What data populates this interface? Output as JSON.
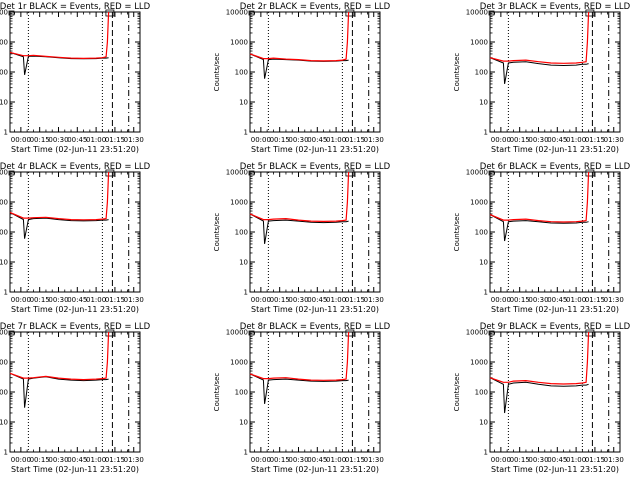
{
  "figure": {
    "background": "#ffffff",
    "event_color": "#000000",
    "lld_color": "#ff0000"
  },
  "chart_data": [
    {
      "type": "line",
      "title": "Det 1r BLACK = Events, RED = LLD",
      "xlabel": "Start Time (02-Jun-11 23:51:20)",
      "ylabel": "Counts/sec",
      "yscale": "log",
      "ylim": [
        1,
        10000
      ],
      "xlim": [
        "23:51:20",
        "01:35:00"
      ],
      "xticks": [
        "00:00",
        "00:15",
        "00:30",
        "00:45",
        "01:00",
        "01:15",
        "01:30"
      ],
      "yticks": [
        1,
        10,
        100,
        1000,
        10000
      ],
      "series": [
        {
          "color": "#000000",
          "x": [
            "23:51:20",
            "00:02",
            "00:03",
            "00:06",
            "00:10",
            "00:20",
            "00:30",
            "00:40",
            "00:50",
            "01:00",
            "01:05",
            "01:08",
            "01:10"
          ],
          "values": [
            450,
            320,
            80,
            330,
            340,
            320,
            300,
            280,
            275,
            280,
            290,
            290,
            300
          ]
        },
        {
          "color": "#ff0000",
          "x": [
            "23:51:20",
            "00:02",
            "00:06",
            "00:10",
            "00:20",
            "00:30",
            "00:40",
            "00:50",
            "01:00",
            "01:05",
            "01:08",
            "01:09",
            "01:10"
          ],
          "values": [
            450,
            350,
            350,
            360,
            330,
            310,
            290,
            285,
            290,
            300,
            320,
            1000,
            10000
          ]
        }
      ]
    },
    {
      "type": "line",
      "title": "Det 2r BLACK = Events, RED = LLD",
      "xlabel": "Start Time (02-Jun-11 23:51:20)",
      "ylabel": "Counts/sec",
      "yscale": "log",
      "ylim": [
        1,
        10000
      ],
      "xlim": [
        "23:51:20",
        "01:35:00"
      ],
      "xticks": [
        "00:00",
        "00:15",
        "00:30",
        "00:45",
        "01:00",
        "01:15",
        "01:30"
      ],
      "yticks": [
        1,
        10,
        100,
        1000,
        10000
      ],
      "series": [
        {
          "color": "#000000",
          "x": [
            "23:51:20",
            "00:02",
            "00:03",
            "00:06",
            "00:10",
            "00:20",
            "00:30",
            "00:40",
            "00:50",
            "01:00",
            "01:05",
            "01:08",
            "01:10"
          ],
          "values": [
            400,
            260,
            60,
            260,
            270,
            260,
            250,
            230,
            225,
            230,
            240,
            240,
            250
          ]
        },
        {
          "color": "#ff0000",
          "x": [
            "23:51:20",
            "00:02",
            "00:06",
            "00:10",
            "00:20",
            "00:30",
            "00:40",
            "00:50",
            "01:00",
            "01:05",
            "01:08",
            "01:09",
            "01:10"
          ],
          "values": [
            400,
            280,
            280,
            290,
            270,
            260,
            240,
            235,
            240,
            250,
            270,
            1000,
            10000
          ]
        }
      ]
    },
    {
      "type": "line",
      "title": "Det 3r BLACK = Events, RED = LLD",
      "xlabel": "Start Time (02-Jun-11 23:51:20)",
      "ylabel": "Counts/sec",
      "yscale": "log",
      "ylim": [
        1,
        10000
      ],
      "xlim": [
        "23:51:20",
        "01:35:00"
      ],
      "xticks": [
        "00:00",
        "00:15",
        "00:30",
        "00:45",
        "01:00",
        "01:15",
        "01:30"
      ],
      "yticks": [
        1,
        10,
        100,
        1000,
        10000
      ],
      "series": [
        {
          "color": "#000000",
          "x": [
            "23:51:20",
            "00:02",
            "00:03",
            "00:06",
            "00:10",
            "00:20",
            "00:30",
            "00:40",
            "00:50",
            "01:00",
            "01:05",
            "01:08",
            "01:10"
          ],
          "values": [
            300,
            200,
            40,
            200,
            210,
            220,
            190,
            170,
            165,
            170,
            180,
            180,
            190
          ]
        },
        {
          "color": "#ff0000",
          "x": [
            "23:51:20",
            "00:02",
            "00:06",
            "00:10",
            "00:20",
            "00:30",
            "00:40",
            "00:50",
            "01:00",
            "01:05",
            "01:08",
            "01:09",
            "01:10"
          ],
          "values": [
            300,
            230,
            230,
            240,
            250,
            220,
            200,
            195,
            200,
            210,
            220,
            1000,
            10000
          ]
        }
      ]
    },
    {
      "type": "line",
      "title": "Det 4r BLACK = Events, RED = LLD",
      "xlabel": "Start Time (02-Jun-11 23:51:20)",
      "ylabel": "Counts/sec",
      "yscale": "log",
      "ylim": [
        1,
        10000
      ],
      "xlim": [
        "23:51:20",
        "01:35:00"
      ],
      "xticks": [
        "00:00",
        "00:15",
        "00:30",
        "00:45",
        "01:00",
        "01:15",
        "01:30"
      ],
      "yticks": [
        1,
        10,
        100,
        1000,
        10000
      ],
      "series": [
        {
          "color": "#000000",
          "x": [
            "23:51:20",
            "00:02",
            "00:03",
            "00:06",
            "00:10",
            "00:20",
            "00:30",
            "00:40",
            "00:50",
            "01:00",
            "01:05",
            "01:08",
            "01:10"
          ],
          "values": [
            450,
            260,
            60,
            260,
            280,
            290,
            260,
            240,
            235,
            240,
            250,
            250,
            260
          ]
        },
        {
          "color": "#ff0000",
          "x": [
            "23:51:20",
            "00:02",
            "00:06",
            "00:10",
            "00:20",
            "00:30",
            "00:40",
            "00:50",
            "01:00",
            "01:05",
            "01:08",
            "01:09",
            "01:10"
          ],
          "values": [
            450,
            290,
            290,
            300,
            310,
            280,
            260,
            255,
            260,
            270,
            280,
            1000,
            10000
          ]
        }
      ]
    },
    {
      "type": "line",
      "title": "Det 5r BLACK = Events, RED = LLD",
      "xlabel": "Start Time (02-Jun-11 23:51:20)",
      "ylabel": "Counts/sec",
      "yscale": "log",
      "ylim": [
        1,
        10000
      ],
      "xlim": [
        "23:51:20",
        "01:35:00"
      ],
      "xticks": [
        "00:00",
        "00:15",
        "00:30",
        "00:45",
        "01:00",
        "01:15",
        "01:30"
      ],
      "yticks": [
        1,
        10,
        100,
        1000,
        10000
      ],
      "series": [
        {
          "color": "#000000",
          "x": [
            "23:51:20",
            "00:02",
            "00:03",
            "00:06",
            "00:10",
            "00:20",
            "00:30",
            "00:40",
            "00:50",
            "01:00",
            "01:05",
            "01:08",
            "01:10"
          ],
          "values": [
            400,
            230,
            40,
            230,
            240,
            250,
            230,
            210,
            205,
            210,
            220,
            220,
            230
          ]
        },
        {
          "color": "#ff0000",
          "x": [
            "23:51:20",
            "00:02",
            "00:06",
            "00:10",
            "00:20",
            "00:30",
            "00:40",
            "00:50",
            "01:00",
            "01:05",
            "01:08",
            "01:09",
            "01:10"
          ],
          "values": [
            400,
            260,
            260,
            270,
            280,
            250,
            230,
            225,
            230,
            240,
            250,
            1000,
            10000
          ]
        }
      ]
    },
    {
      "type": "line",
      "title": "Det 6r BLACK = Events, RED = LLD",
      "xlabel": "Start Time (02-Jun-11 23:51:20)",
      "ylabel": "Counts/sec",
      "yscale": "log",
      "ylim": [
        1,
        10000
      ],
      "xlim": [
        "23:51:20",
        "01:35:00"
      ],
      "xticks": [
        "00:00",
        "00:15",
        "00:30",
        "00:45",
        "01:00",
        "01:15",
        "01:30"
      ],
      "yticks": [
        1,
        10,
        100,
        1000,
        10000
      ],
      "series": [
        {
          "color": "#000000",
          "x": [
            "23:51:20",
            "00:02",
            "00:03",
            "00:06",
            "00:10",
            "00:20",
            "00:30",
            "00:40",
            "00:50",
            "01:00",
            "01:05",
            "01:08",
            "01:10"
          ],
          "values": [
            380,
            220,
            50,
            220,
            230,
            240,
            220,
            200,
            195,
            200,
            210,
            210,
            220
          ]
        },
        {
          "color": "#ff0000",
          "x": [
            "23:51:20",
            "00:02",
            "00:06",
            "00:10",
            "00:20",
            "00:30",
            "00:40",
            "00:50",
            "01:00",
            "01:05",
            "01:08",
            "01:09",
            "01:10"
          ],
          "values": [
            380,
            250,
            250,
            260,
            270,
            240,
            220,
            215,
            220,
            230,
            240,
            1000,
            10000
          ]
        }
      ]
    },
    {
      "type": "line",
      "title": "Det 7r BLACK = Events, RED = LLD",
      "xlabel": "Start Time (02-Jun-11 23:51:20)",
      "ylabel": "Counts/sec",
      "yscale": "log",
      "ylim": [
        1,
        10000
      ],
      "xlim": [
        "23:51:20",
        "01:35:00"
      ],
      "xticks": [
        "00:00",
        "00:15",
        "00:30",
        "00:45",
        "01:00",
        "01:15",
        "01:30"
      ],
      "yticks": [
        1,
        10,
        100,
        1000,
        10000
      ],
      "series": [
        {
          "color": "#000000",
          "x": [
            "23:51:20",
            "00:02",
            "00:03",
            "00:06",
            "00:10",
            "00:20",
            "00:30",
            "00:40",
            "00:50",
            "01:00",
            "01:05",
            "01:08",
            "01:10"
          ],
          "values": [
            420,
            270,
            30,
            270,
            290,
            320,
            270,
            250,
            240,
            250,
            260,
            260,
            270
          ]
        },
        {
          "color": "#ff0000",
          "x": [
            "23:51:20",
            "00:02",
            "00:06",
            "00:10",
            "00:20",
            "00:30",
            "00:40",
            "00:50",
            "01:00",
            "01:05",
            "01:08",
            "01:09",
            "01:10"
          ],
          "values": [
            420,
            290,
            290,
            300,
            330,
            290,
            270,
            260,
            270,
            280,
            290,
            1000,
            10000
          ]
        }
      ]
    },
    {
      "type": "line",
      "title": "Det 8r BLACK = Events, RED = LLD",
      "xlabel": "Start Time (02-Jun-11 23:51:20)",
      "ylabel": "Counts/sec",
      "yscale": "log",
      "ylim": [
        1,
        10000
      ],
      "xlim": [
        "23:51:20",
        "01:35:00"
      ],
      "xticks": [
        "00:00",
        "00:15",
        "00:30",
        "00:45",
        "01:00",
        "01:15",
        "01:30"
      ],
      "yticks": [
        1,
        10,
        100,
        1000,
        10000
      ],
      "series": [
        {
          "color": "#000000",
          "x": [
            "23:51:20",
            "00:02",
            "00:03",
            "00:06",
            "00:10",
            "00:20",
            "00:30",
            "00:40",
            "00:50",
            "01:00",
            "01:05",
            "01:08",
            "01:10"
          ],
          "values": [
            400,
            250,
            40,
            250,
            260,
            270,
            250,
            230,
            225,
            230,
            240,
            240,
            250
          ]
        },
        {
          "color": "#ff0000",
          "x": [
            "23:51:20",
            "00:02",
            "00:06",
            "00:10",
            "00:20",
            "00:30",
            "00:40",
            "00:50",
            "01:00",
            "01:05",
            "01:08",
            "01:09",
            "01:10"
          ],
          "values": [
            400,
            280,
            280,
            290,
            300,
            270,
            250,
            245,
            250,
            260,
            270,
            1000,
            10000
          ]
        }
      ]
    },
    {
      "type": "line",
      "title": "Det 9r BLACK = Events, RED = LLD",
      "xlabel": "Start Time (02-Jun-11 23:51:20)",
      "ylabel": "Counts/sec",
      "yscale": "log",
      "ylim": [
        1,
        10000
      ],
      "xlim": [
        "23:51:20",
        "01:35:00"
      ],
      "xticks": [
        "00:00",
        "00:15",
        "00:30",
        "00:45",
        "01:00",
        "01:15",
        "01:30"
      ],
      "yticks": [
        1,
        10,
        100,
        1000,
        10000
      ],
      "series": [
        {
          "color": "#000000",
          "x": [
            "23:51:20",
            "00:02",
            "00:03",
            "00:06",
            "00:10",
            "00:20",
            "00:30",
            "00:40",
            "00:50",
            "01:00",
            "01:05",
            "01:08",
            "01:10"
          ],
          "values": [
            300,
            180,
            20,
            180,
            200,
            210,
            180,
            160,
            155,
            160,
            170,
            170,
            180
          ]
        },
        {
          "color": "#ff0000",
          "x": [
            "23:51:20",
            "00:02",
            "00:06",
            "00:10",
            "00:20",
            "00:30",
            "00:40",
            "00:50",
            "01:00",
            "01:05",
            "01:08",
            "01:09",
            "01:10"
          ],
          "values": [
            300,
            210,
            210,
            230,
            240,
            210,
            190,
            185,
            190,
            200,
            210,
            1000,
            10000
          ]
        }
      ]
    }
  ]
}
